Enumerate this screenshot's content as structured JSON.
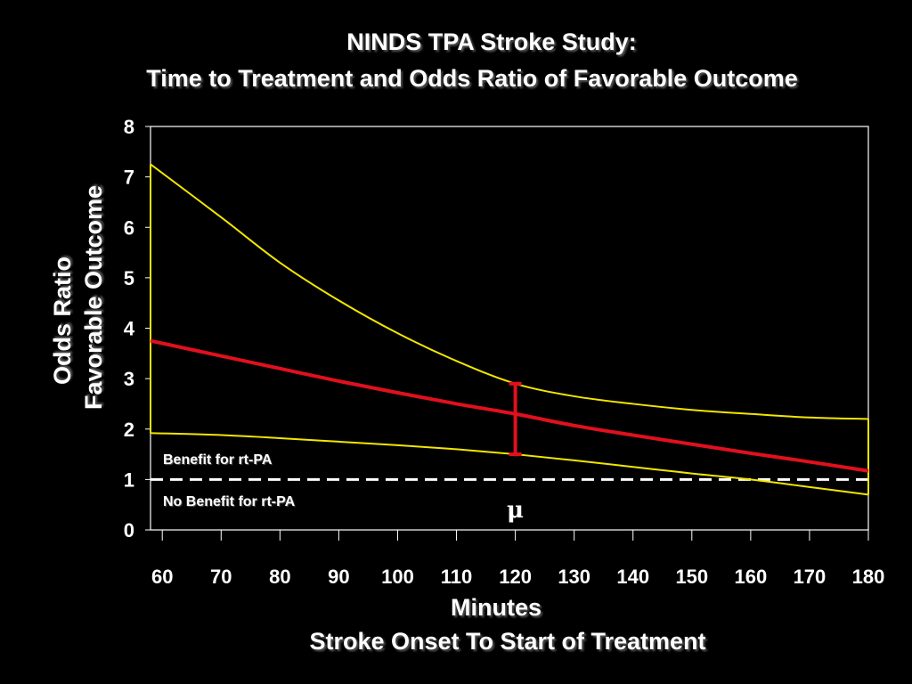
{
  "title": {
    "line1": "NINDS TPA Stroke Study:",
    "line2": "Time to Treatment and Odds Ratio of Favorable Outcome"
  },
  "axes": {
    "ylabel_line1": "Odds Ratio",
    "ylabel_line2": "Favorable Outcome",
    "xlabel_line1": "Minutes",
    "xlabel_line2": "Stroke Onset To Start of Treatment"
  },
  "annotations": {
    "benefit": "Benefit for rt-PA",
    "no_benefit": "No Benefit for rt-PA",
    "mu": "μ"
  },
  "colors": {
    "background": "#000000",
    "estimate": "#e0101e",
    "ci": "#f2e600",
    "reference": "#ffffff",
    "text": "#ffffff"
  },
  "chart_data": {
    "type": "line",
    "xlim": [
      58,
      180
    ],
    "ylim": [
      0,
      8
    ],
    "xticks": [
      60,
      70,
      80,
      90,
      100,
      110,
      120,
      130,
      140,
      150,
      160,
      170,
      180
    ],
    "yticks": [
      0,
      1,
      2,
      3,
      4,
      5,
      6,
      7,
      8
    ],
    "grid": false,
    "series": [
      {
        "role": "estimate",
        "x": [
          58,
          70,
          80,
          90,
          100,
          110,
          120,
          130,
          140,
          150,
          160,
          170,
          180
        ],
        "y": [
          3.75,
          3.45,
          3.2,
          2.95,
          2.72,
          2.5,
          2.3,
          2.07,
          1.88,
          1.7,
          1.52,
          1.35,
          1.17
        ]
      },
      {
        "role": "upper-ci",
        "x": [
          58,
          70,
          80,
          90,
          100,
          110,
          120,
          130,
          140,
          150,
          160,
          170,
          180
        ],
        "y": [
          7.25,
          6.2,
          5.3,
          4.55,
          3.9,
          3.35,
          2.9,
          2.65,
          2.5,
          2.38,
          2.3,
          2.23,
          2.2
        ]
      },
      {
        "role": "lower-ci",
        "x": [
          58,
          70,
          80,
          90,
          100,
          110,
          120,
          130,
          140,
          150,
          160,
          170,
          180
        ],
        "y": [
          1.92,
          1.88,
          1.82,
          1.75,
          1.68,
          1.6,
          1.5,
          1.38,
          1.25,
          1.12,
          1.0,
          0.85,
          0.7
        ]
      }
    ],
    "reference_line": {
      "y": 1,
      "style": "dashed"
    },
    "error_bar": {
      "x": 120,
      "low": 1.5,
      "high": 2.9
    }
  }
}
